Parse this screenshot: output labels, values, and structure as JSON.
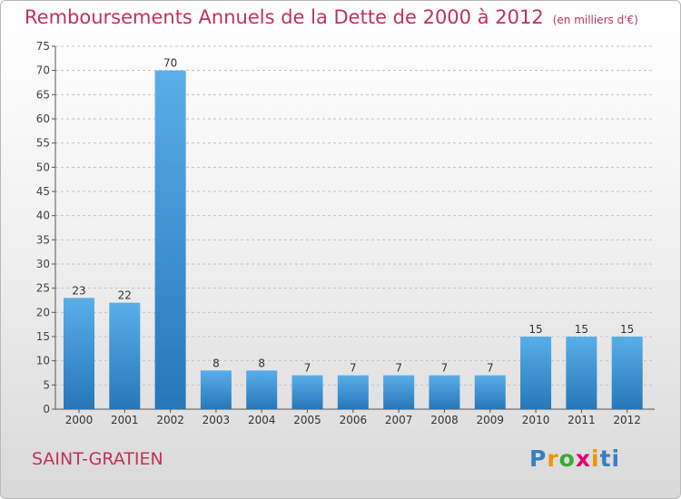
{
  "title": "Remboursements Annuels de la Dette de 2000 à 2012",
  "unit": "(en milliers d'€)",
  "commune": "SAINT-GRATIEN",
  "logo": "Proxiti",
  "chart_data": {
    "type": "bar",
    "title": "Remboursements Annuels de la Dette de 2000 à 2012",
    "categories": [
      "2000",
      "2001",
      "2002",
      "2003",
      "2004",
      "2005",
      "2006",
      "2007",
      "2008",
      "2009",
      "2010",
      "2011",
      "2012"
    ],
    "values": [
      23,
      22,
      70,
      8,
      8,
      7,
      7,
      7,
      7,
      7,
      15,
      15,
      15
    ],
    "ylim": [
      0,
      75
    ],
    "yticks": [
      0,
      5,
      10,
      15,
      20,
      25,
      30,
      35,
      40,
      45,
      50,
      55,
      60,
      65,
      70,
      75
    ],
    "grid": "horizontal-dashed",
    "bar_color": "#3a8fd6"
  }
}
